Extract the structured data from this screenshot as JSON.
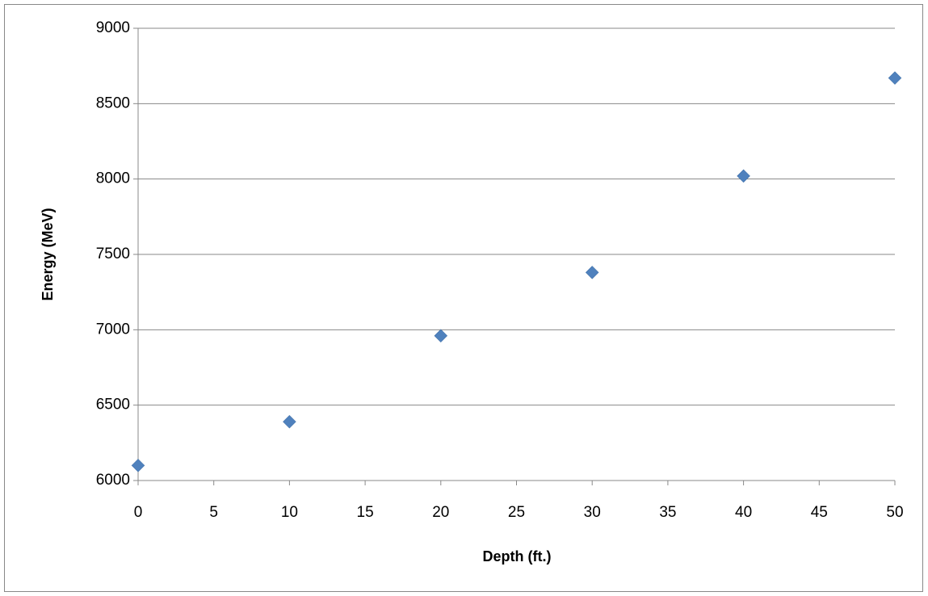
{
  "chart_data": {
    "type": "scatter",
    "x_label": "Depth (ft.)",
    "y_label": "Energy (MeV)",
    "x": [
      0,
      10,
      20,
      30,
      40,
      50
    ],
    "values": [
      6100,
      6390,
      6960,
      7380,
      8020,
      8670
    ],
    "color": "#4f81bd",
    "xlim": [
      0,
      50
    ],
    "xticks": [
      0,
      5,
      10,
      15,
      20,
      25,
      30,
      35,
      40,
      45,
      50
    ],
    "ylim": [
      6000,
      9000
    ],
    "yticks": [
      6000,
      6500,
      7000,
      7500,
      8000,
      8500,
      9000
    ],
    "grid": true
  }
}
